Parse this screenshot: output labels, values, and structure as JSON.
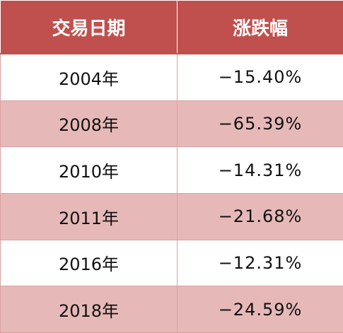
{
  "table": {
    "headers": [
      "交易日期",
      "涨跌幅"
    ],
    "rows": [
      {
        "date": "2004年",
        "change": "−15.40%"
      },
      {
        "date": "2008年",
        "change": "−65.39%"
      },
      {
        "date": "2010年",
        "change": "−14.31%"
      },
      {
        "date": "2011年",
        "change": "−21.68%"
      },
      {
        "date": "2016年",
        "change": "−12.31%"
      },
      {
        "date": "2018年",
        "change": "−24.59%"
      }
    ],
    "colors": {
      "header_bg": "#c0504d",
      "header_text": "#ffffff",
      "band_row": "#e6b9b8",
      "plain_row": "#ffffff",
      "border": "#d9a3a3"
    }
  }
}
